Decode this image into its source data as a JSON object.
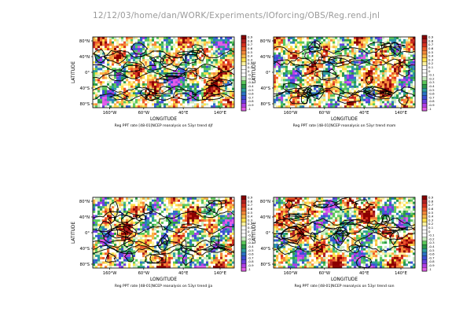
{
  "header": "12/12/03/home/dan/WORK/Experiments/IOforcing/OBS/Reg.rend.jnl",
  "colorbar": {
    "labels": [
      "0.9",
      "0.8",
      "0.7",
      "0.6",
      "0.5",
      "0.4",
      "0.3",
      "0.2",
      "0.1",
      "0",
      "-0.1",
      "-0.2",
      "-0.3",
      "-0.4",
      "-0.5",
      "-0.6",
      "-0.7",
      "-0.8",
      "-0.9",
      "-1"
    ],
    "colors": [
      "#8b0000",
      "#b22222",
      "#d7301f",
      "#ef5a2a",
      "#f5883a",
      "#f9b548",
      "#fde04a",
      "#fff3a0",
      "#ffffff",
      "#ffffff",
      "#ffffff",
      "#c9ecc0",
      "#5cc85c",
      "#2a9a4a",
      "#2f9e9e",
      "#2b74c6",
      "#3b4ed4",
      "#6b3fe0",
      "#b13fe6",
      "#e05ce8"
    ]
  },
  "chart_data": [
    {
      "type": "heatmap",
      "title": "Reg PPT rate [48-01]NCEP reanalysis on 53yr trend djf",
      "xlabel": "LONGITUDE",
      "ylabel": "LATITUDE",
      "xticks": [
        "160°W",
        "60°W",
        "40°E",
        "140°E"
      ],
      "yticks": [
        "80°N",
        "40°N",
        "0°",
        "40°S",
        "80°S"
      ],
      "colorbar_range": [
        -1,
        0.9
      ]
    },
    {
      "type": "heatmap",
      "title": "Reg PPT rate [48-01]NCEP reanalysis on 53yr trend mam",
      "xlabel": "LONGITUDE",
      "ylabel": "LATITUDE",
      "xticks": [
        "160°W",
        "60°W",
        "40°E",
        "140°E"
      ],
      "yticks": [
        "80°N",
        "40°N",
        "0°",
        "40°S",
        "80°S"
      ],
      "colorbar_range": [
        -1,
        0.9
      ]
    },
    {
      "type": "heatmap",
      "title": "Reg PPT rate [48-01]NCEP reanalysis on 53yr trend jja",
      "xlabel": "LONGITUDE",
      "ylabel": "LATITUDE",
      "xticks": [
        "160°W",
        "60°W",
        "40°E",
        "140°E"
      ],
      "yticks": [
        "80°N",
        "40°N",
        "0°",
        "40°S",
        "80°S"
      ],
      "colorbar_range": [
        -1,
        0.9
      ]
    },
    {
      "type": "heatmap",
      "title": "Reg PPT rate [48-01]NCEP reanalysis on 53yr trend son",
      "xlabel": "LONGITUDE",
      "ylabel": "LATITUDE",
      "xticks": [
        "160°W",
        "60°W",
        "40°E",
        "140°E"
      ],
      "yticks": [
        "80°N",
        "40°N",
        "0°",
        "40°S",
        "80°S"
      ],
      "colorbar_range": [
        -1,
        0.9
      ]
    }
  ]
}
